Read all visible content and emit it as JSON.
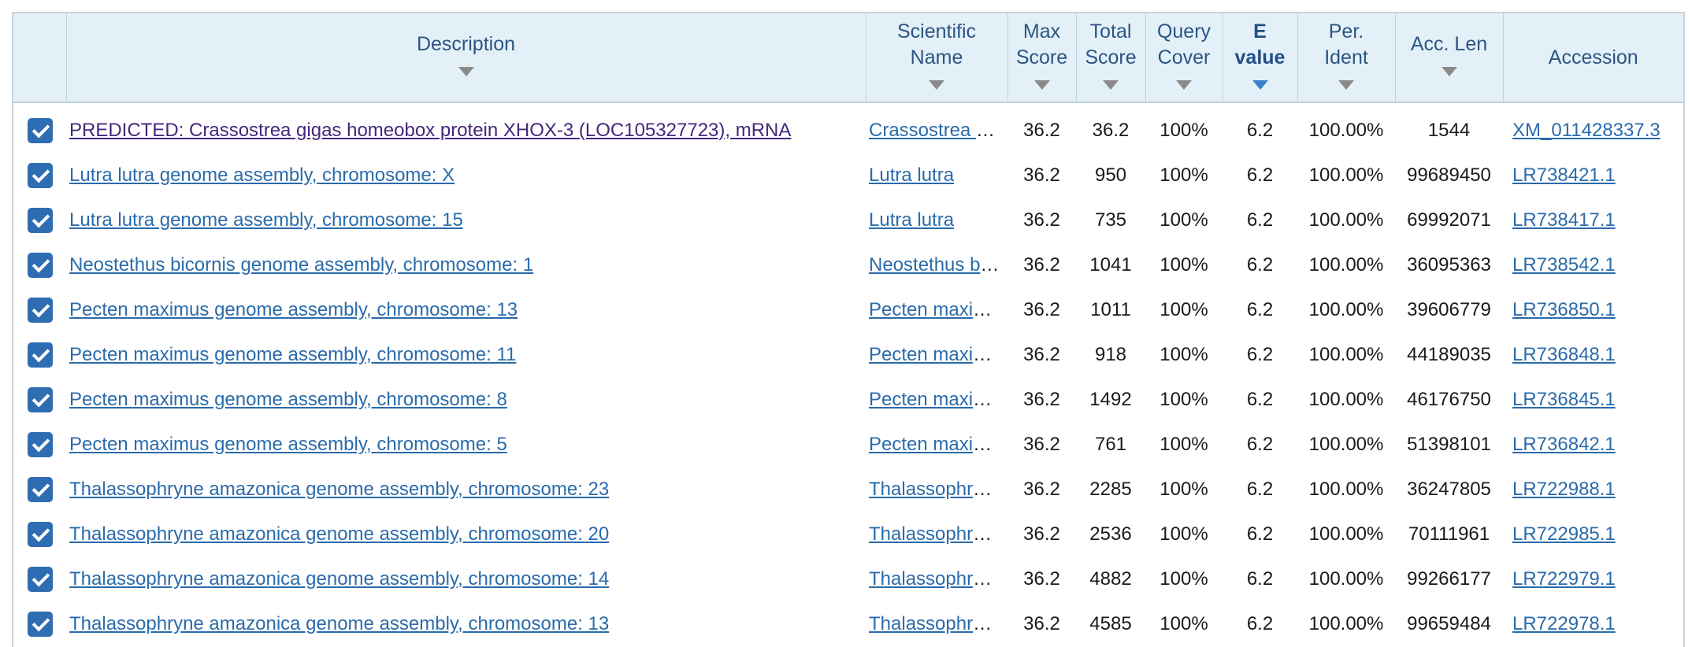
{
  "table": {
    "columns": [
      {
        "key": "select",
        "label": ""
      },
      {
        "key": "description",
        "label": "Description"
      },
      {
        "key": "scientific_name",
        "label": "Scientific\nName"
      },
      {
        "key": "max_score",
        "label": "Max\nScore"
      },
      {
        "key": "total_score",
        "label": "Total\nScore"
      },
      {
        "key": "query_cover",
        "label": "Query\nCover"
      },
      {
        "key": "e_value",
        "label": "E\nvalue",
        "sorted": true
      },
      {
        "key": "per_ident",
        "label": "Per.\nIdent"
      },
      {
        "key": "acc_len",
        "label": "Acc. Len"
      },
      {
        "key": "accession",
        "label": "Accession"
      }
    ],
    "rows": [
      {
        "checked": true,
        "description": "PREDICTED: Crassostrea gigas homeobox protein XHOX-3 (LOC105327723), mRNA",
        "description_visited": true,
        "scientific_name": "Crassostrea gigas",
        "max_score": "36.2",
        "total_score": "36.2",
        "query_cover": "100%",
        "e_value": "6.2",
        "per_ident": "100.00%",
        "acc_len": "1544",
        "accession": "XM_011428337.3"
      },
      {
        "checked": true,
        "description": "Lutra lutra genome assembly, chromosome: X",
        "scientific_name": "Lutra lutra",
        "max_score": "36.2",
        "total_score": "950",
        "query_cover": "100%",
        "e_value": "6.2",
        "per_ident": "100.00%",
        "acc_len": "99689450",
        "accession": "LR738421.1"
      },
      {
        "checked": true,
        "description": "Lutra lutra genome assembly, chromosome: 15",
        "scientific_name": "Lutra lutra",
        "max_score": "36.2",
        "total_score": "735",
        "query_cover": "100%",
        "e_value": "6.2",
        "per_ident": "100.00%",
        "acc_len": "69992071",
        "accession": "LR738417.1"
      },
      {
        "checked": true,
        "description": "Neostethus bicornis genome assembly, chromosome: 1",
        "scientific_name": "Neostethus bicornis",
        "max_score": "36.2",
        "total_score": "1041",
        "query_cover": "100%",
        "e_value": "6.2",
        "per_ident": "100.00%",
        "acc_len": "36095363",
        "accession": "LR738542.1"
      },
      {
        "checked": true,
        "description": "Pecten maximus genome assembly, chromosome: 13",
        "scientific_name": "Pecten maximus",
        "max_score": "36.2",
        "total_score": "1011",
        "query_cover": "100%",
        "e_value": "6.2",
        "per_ident": "100.00%",
        "acc_len": "39606779",
        "accession": "LR736850.1"
      },
      {
        "checked": true,
        "description": "Pecten maximus genome assembly, chromosome: 11",
        "scientific_name": "Pecten maximus",
        "max_score": "36.2",
        "total_score": "918",
        "query_cover": "100%",
        "e_value": "6.2",
        "per_ident": "100.00%",
        "acc_len": "44189035",
        "accession": "LR736848.1"
      },
      {
        "checked": true,
        "description": "Pecten maximus genome assembly, chromosome: 8",
        "scientific_name": "Pecten maximus",
        "max_score": "36.2",
        "total_score": "1492",
        "query_cover": "100%",
        "e_value": "6.2",
        "per_ident": "100.00%",
        "acc_len": "46176750",
        "accession": "LR736845.1"
      },
      {
        "checked": true,
        "description": "Pecten maximus genome assembly, chromosome: 5",
        "scientific_name": "Pecten maximus",
        "max_score": "36.2",
        "total_score": "761",
        "query_cover": "100%",
        "e_value": "6.2",
        "per_ident": "100.00%",
        "acc_len": "51398101",
        "accession": "LR736842.1"
      },
      {
        "checked": true,
        "description": "Thalassophryne amazonica genome assembly, chromosome: 23",
        "scientific_name": "Thalassophryne amazonica",
        "max_score": "36.2",
        "total_score": "2285",
        "query_cover": "100%",
        "e_value": "6.2",
        "per_ident": "100.00%",
        "acc_len": "36247805",
        "accession": "LR722988.1"
      },
      {
        "checked": true,
        "description": "Thalassophryne amazonica genome assembly, chromosome: 20",
        "scientific_name": "Thalassophryne amazonica",
        "max_score": "36.2",
        "total_score": "2536",
        "query_cover": "100%",
        "e_value": "6.2",
        "per_ident": "100.00%",
        "acc_len": "70111961",
        "accession": "LR722985.1"
      },
      {
        "checked": true,
        "description": "Thalassophryne amazonica genome assembly, chromosome: 14",
        "scientific_name": "Thalassophryne amazonica",
        "max_score": "36.2",
        "total_score": "4882",
        "query_cover": "100%",
        "e_value": "6.2",
        "per_ident": "100.00%",
        "acc_len": "99266177",
        "accession": "LR722979.1"
      },
      {
        "checked": true,
        "description": "Thalassophryne amazonica genome assembly, chromosome: 13",
        "scientific_name": "Thalassophryne amazonica",
        "max_score": "36.2",
        "total_score": "4585",
        "query_cover": "100%",
        "e_value": "6.2",
        "per_ident": "100.00%",
        "acc_len": "99659484",
        "accession": "LR722978.1"
      }
    ]
  }
}
